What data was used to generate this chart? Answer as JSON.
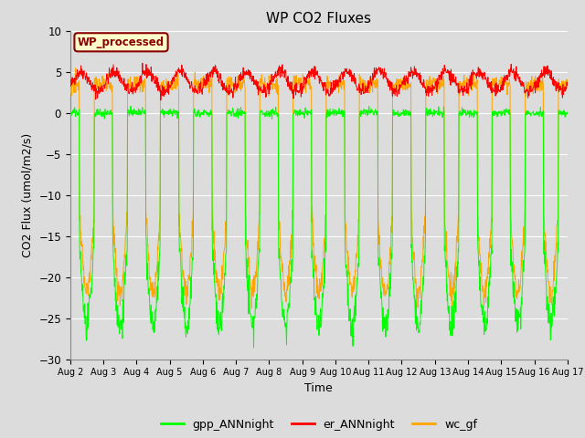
{
  "title": "WP CO2 Fluxes",
  "xlabel": "Time",
  "ylabel": "CO2 Flux (umol/m2/s)",
  "ylim": [
    -30,
    10
  ],
  "xlim_days": [
    2,
    17
  ],
  "annotation_text": "WP_processed",
  "annotation_color": "#8B0000",
  "annotation_bg": "#FFFFCC",
  "annotation_border": "#8B0000",
  "legend_labels": [
    "gpp_ANNnight",
    "er_ANNnight",
    "wc_gf"
  ],
  "line_colors": [
    "#00FF00",
    "#FF0000",
    "#FFA500"
  ],
  "xtick_labels": [
    "Aug 2",
    "Aug 3",
    "Aug 4",
    "Aug 5",
    "Aug 6",
    "Aug 7",
    "Aug 8",
    "Aug 9",
    "Aug 10",
    "Aug 11",
    "Aug 12",
    "Aug 13",
    "Aug 14",
    "Aug 15",
    "Aug 16",
    "Aug 17"
  ],
  "bg_color": "#DCDCDC",
  "fig_bg": "#DCDCDC",
  "n_days": 15,
  "pts_per_day": 96
}
